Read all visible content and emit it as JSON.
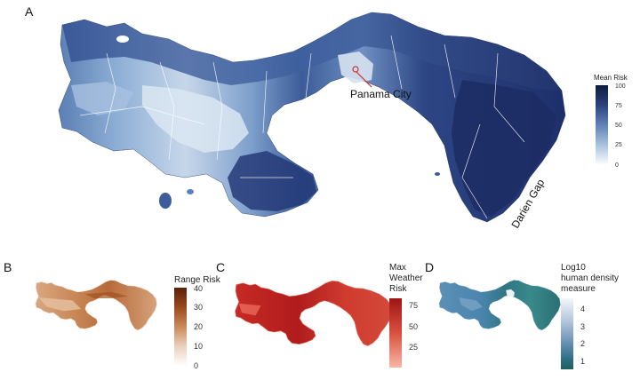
{
  "panels": [
    {
      "id": "A",
      "letter": "A",
      "legend": {
        "title": "Mean Risk",
        "ticks": [
          "100",
          "75",
          "50",
          "25",
          "0"
        ],
        "colors": [
          "#0c1a3d",
          "#2b437f",
          "#5f83b7",
          "#a9c3df",
          "#ffffff"
        ]
      },
      "annotations": [
        "Panama City",
        "Darien Gap"
      ]
    },
    {
      "id": "B",
      "letter": "B",
      "legend": {
        "title": "Range Risk",
        "ticks": [
          "40",
          "30",
          "20",
          "10",
          "0"
        ],
        "colors": [
          "#5c1f08",
          "#9a4a1e",
          "#c98a5a",
          "#ead1bc",
          "#ffffff"
        ]
      }
    },
    {
      "id": "C",
      "letter": "C",
      "legend": {
        "title_lines": [
          "Max",
          "Weather",
          "Risk"
        ],
        "ticks": [
          "75",
          "50",
          "25"
        ],
        "colors": [
          "#b31b1b",
          "#d9503f",
          "#f4a38f"
        ]
      }
    },
    {
      "id": "D",
      "letter": "D",
      "legend": {
        "title_lines": [
          "Log10",
          "human density",
          "measure"
        ],
        "ticks": [
          "4",
          "3",
          "2",
          "1"
        ],
        "colors": [
          "#f4f6f9",
          "#b8c9de",
          "#6f95b9",
          "#2f6f86",
          "#1d5f5e"
        ]
      }
    }
  ]
}
